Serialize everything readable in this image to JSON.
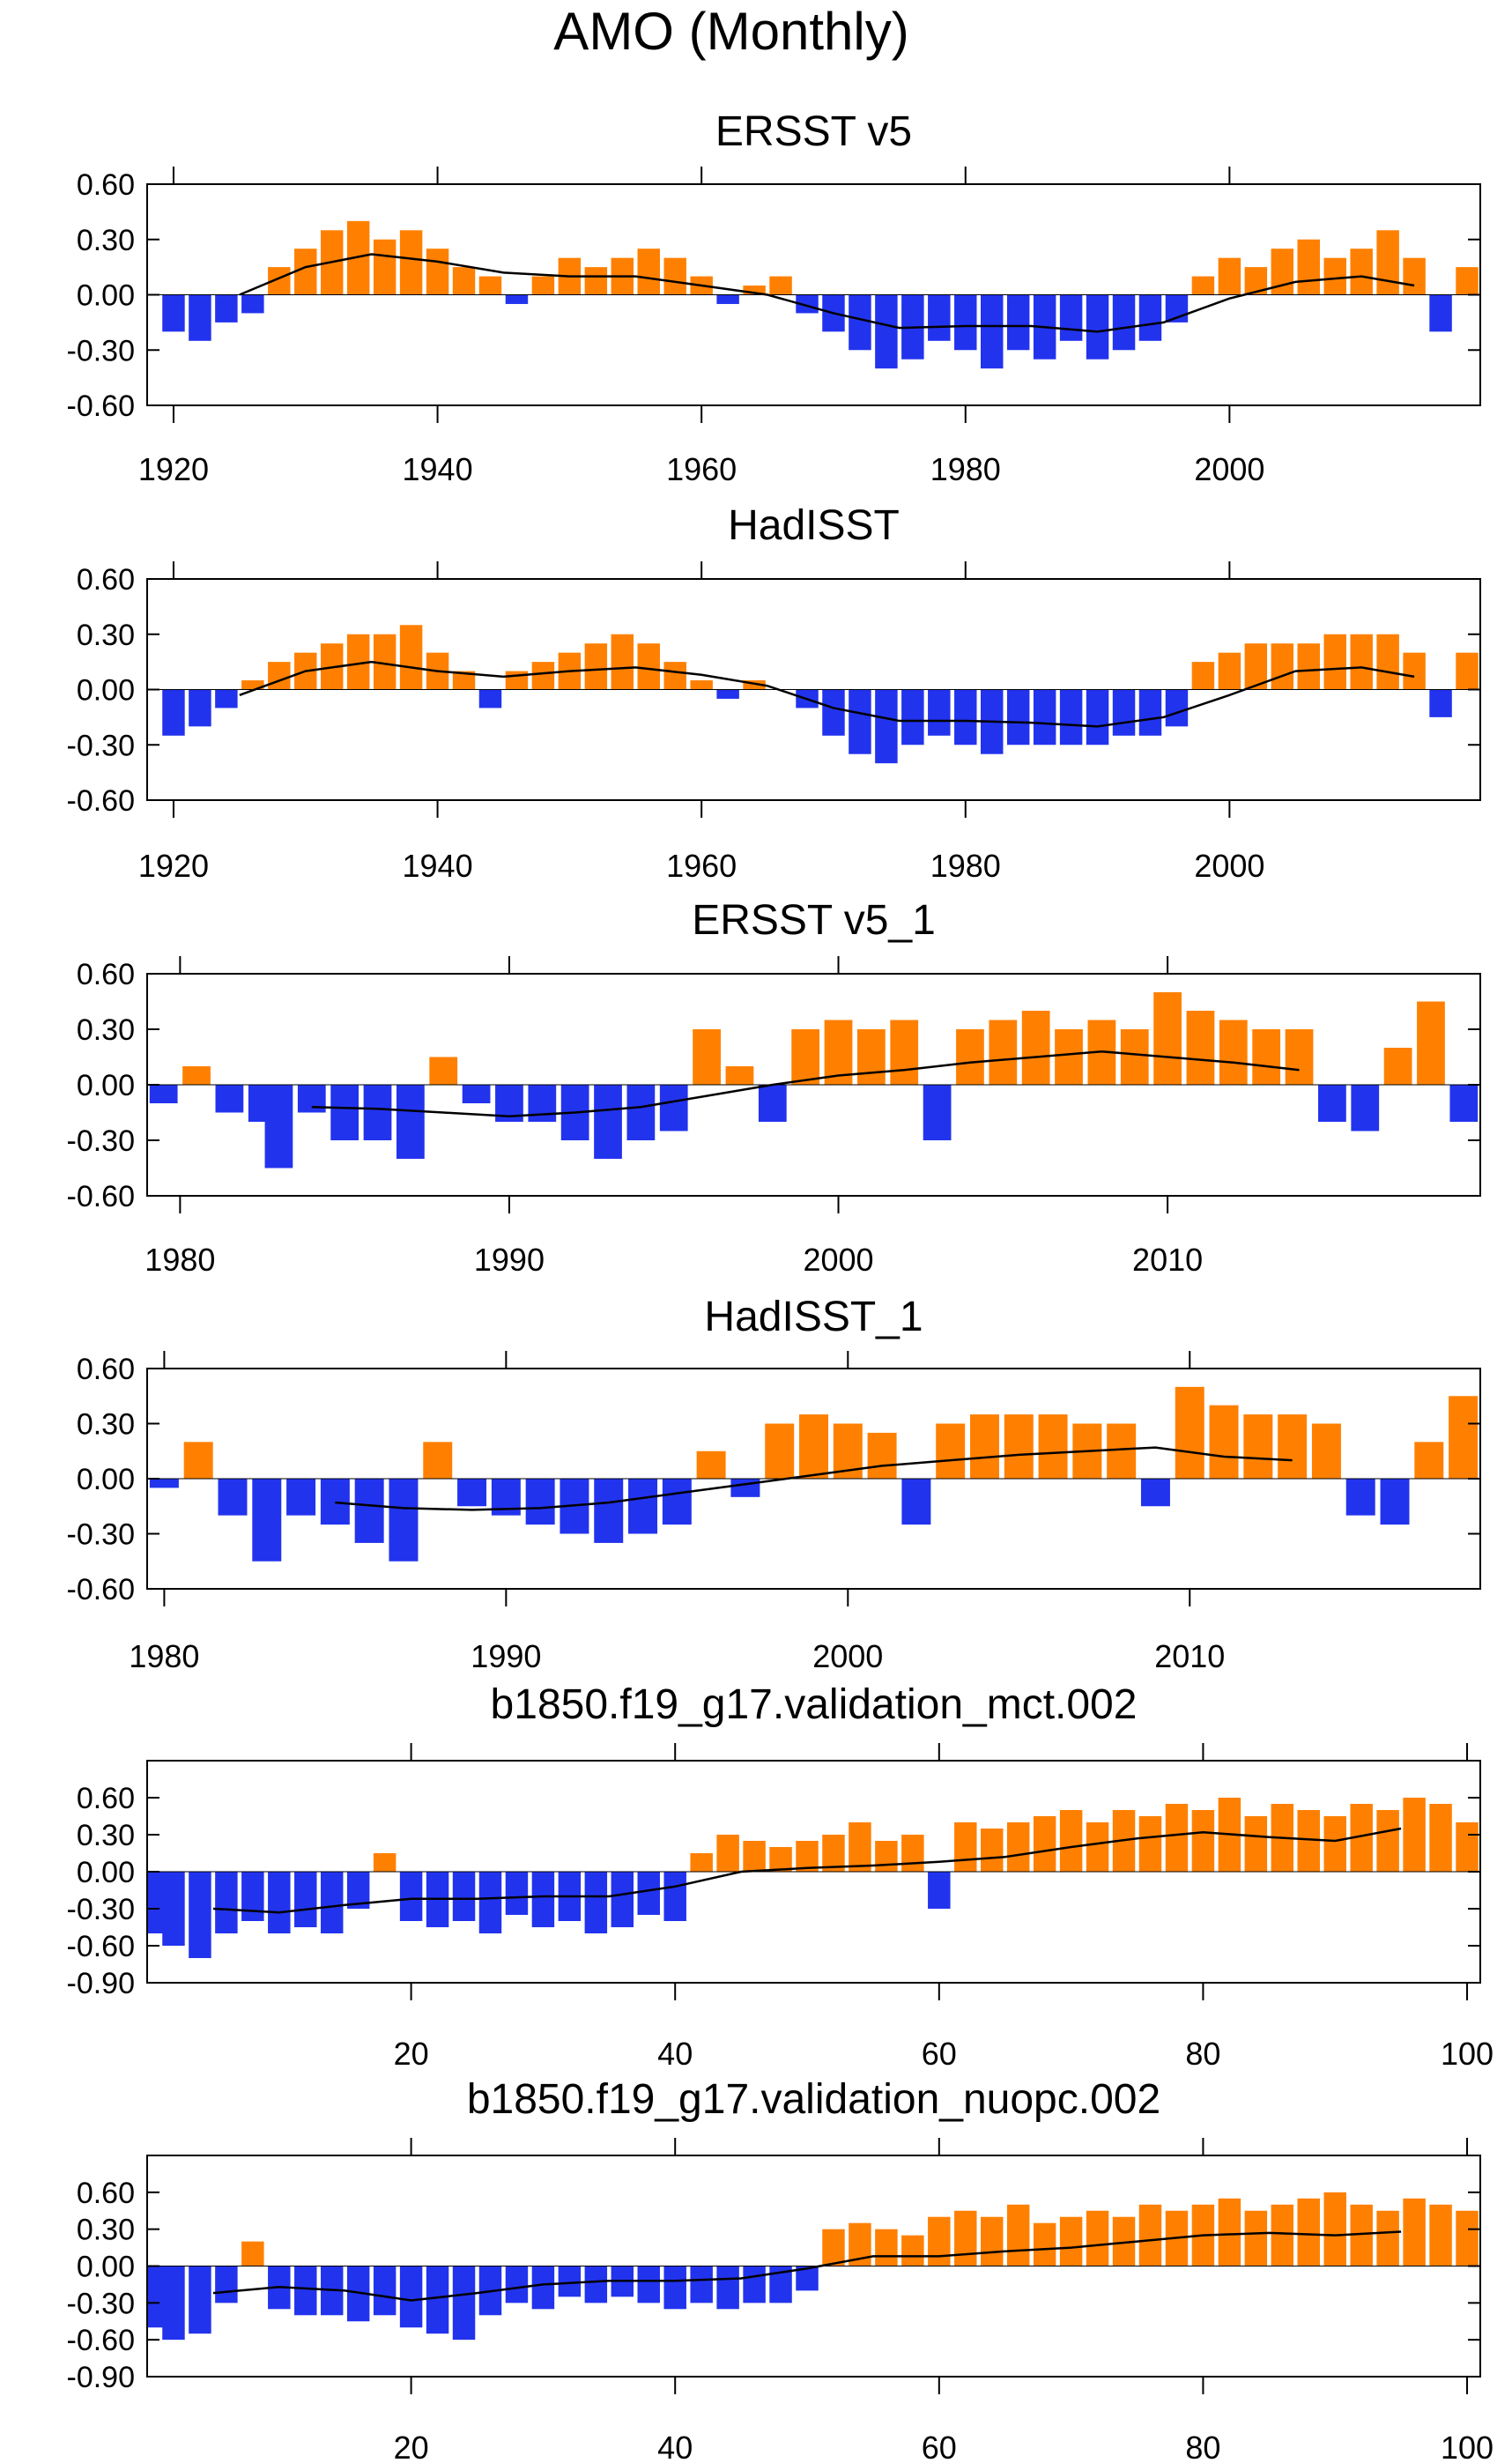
{
  "title": "AMO (Monthly)",
  "colors": {
    "positive": "#ff8000",
    "negative": "#2233ee",
    "smooth": "#000000",
    "axis": "#000000"
  },
  "chart_data": [
    {
      "type": "area",
      "title": "ERSST v5",
      "xlabel": "",
      "ylabel": "",
      "xlim": [
        1918,
        2019
      ],
      "ylim": [
        -0.6,
        0.6
      ],
      "yticks": [
        "0.60",
        "0.30",
        "0.00",
        "-0.30",
        "-0.60"
      ],
      "xticks": [
        "1920",
        "1940",
        "1960",
        "1980",
        "2000"
      ],
      "x": [
        1920,
        1922,
        1924,
        1926,
        1928,
        1930,
        1932,
        1934,
        1936,
        1938,
        1940,
        1942,
        1944,
        1946,
        1948,
        1950,
        1952,
        1954,
        1956,
        1958,
        1960,
        1962,
        1964,
        1966,
        1968,
        1970,
        1972,
        1974,
        1976,
        1978,
        1980,
        1982,
        1984,
        1986,
        1988,
        1990,
        1992,
        1994,
        1996,
        1998,
        2000,
        2002,
        2004,
        2006,
        2008,
        2010,
        2012,
        2014,
        2016,
        2018
      ],
      "values": [
        -0.2,
        -0.25,
        -0.15,
        -0.1,
        0.15,
        0.25,
        0.35,
        0.4,
        0.3,
        0.35,
        0.25,
        0.15,
        0.1,
        -0.05,
        0.1,
        0.2,
        0.15,
        0.2,
        0.25,
        0.2,
        0.1,
        -0.05,
        0.05,
        0.1,
        -0.1,
        -0.2,
        -0.3,
        -0.4,
        -0.35,
        -0.25,
        -0.3,
        -0.4,
        -0.3,
        -0.35,
        -0.25,
        -0.35,
        -0.3,
        -0.25,
        -0.15,
        0.1,
        0.2,
        0.15,
        0.25,
        0.3,
        0.2,
        0.25,
        0.35,
        0.2,
        -0.2,
        0.15
      ],
      "smooth_x": [
        1925,
        1930,
        1935,
        1940,
        1945,
        1950,
        1955,
        1960,
        1965,
        1970,
        1975,
        1980,
        1985,
        1990,
        1995,
        2000,
        2005,
        2010,
        2014
      ],
      "smooth": [
        0.0,
        0.15,
        0.22,
        0.18,
        0.12,
        0.1,
        0.1,
        0.05,
        0.0,
        -0.1,
        -0.18,
        -0.17,
        -0.17,
        -0.2,
        -0.15,
        -0.02,
        0.07,
        0.1,
        0.05
      ]
    },
    {
      "type": "area",
      "title": "HadISST",
      "xlabel": "",
      "ylabel": "",
      "xlim": [
        1918,
        2019
      ],
      "ylim": [
        -0.6,
        0.6
      ],
      "yticks": [
        "0.60",
        "0.30",
        "0.00",
        "-0.30",
        "-0.60"
      ],
      "xticks": [
        "1920",
        "1940",
        "1960",
        "1980",
        "2000"
      ],
      "x": [
        1920,
        1922,
        1924,
        1926,
        1928,
        1930,
        1932,
        1934,
        1936,
        1938,
        1940,
        1942,
        1944,
        1946,
        1948,
        1950,
        1952,
        1954,
        1956,
        1958,
        1960,
        1962,
        1964,
        1966,
        1968,
        1970,
        1972,
        1974,
        1976,
        1978,
        1980,
        1982,
        1984,
        1986,
        1988,
        1990,
        1992,
        1994,
        1996,
        1998,
        2000,
        2002,
        2004,
        2006,
        2008,
        2010,
        2012,
        2014,
        2016,
        2018
      ],
      "values": [
        -0.25,
        -0.2,
        -0.1,
        0.05,
        0.15,
        0.2,
        0.25,
        0.3,
        0.3,
        0.35,
        0.2,
        0.1,
        -0.1,
        0.1,
        0.15,
        0.2,
        0.25,
        0.3,
        0.25,
        0.15,
        0.05,
        -0.05,
        0.05,
        0.0,
        -0.1,
        -0.25,
        -0.35,
        -0.4,
        -0.3,
        -0.25,
        -0.3,
        -0.35,
        -0.3,
        -0.3,
        -0.3,
        -0.3,
        -0.25,
        -0.25,
        -0.2,
        0.15,
        0.2,
        0.25,
        0.25,
        0.25,
        0.3,
        0.3,
        0.3,
        0.2,
        -0.15,
        0.2
      ],
      "smooth_x": [
        1925,
        1930,
        1935,
        1940,
        1945,
        1950,
        1955,
        1960,
        1965,
        1970,
        1975,
        1980,
        1985,
        1990,
        1995,
        2000,
        2005,
        2010,
        2014
      ],
      "smooth": [
        -0.03,
        0.1,
        0.15,
        0.1,
        0.07,
        0.1,
        0.12,
        0.08,
        0.02,
        -0.1,
        -0.17,
        -0.17,
        -0.18,
        -0.2,
        -0.15,
        -0.03,
        0.1,
        0.12,
        0.07
      ]
    },
    {
      "type": "area",
      "title": "ERSST v5_1",
      "xlabel": "",
      "ylabel": "",
      "xlim": [
        1979,
        2019.5
      ],
      "ylim": [
        -0.6,
        0.6
      ],
      "yticks": [
        "0.60",
        "0.30",
        "0.00",
        "-0.30",
        "-0.60"
      ],
      "xticks": [
        "1980",
        "1990",
        "2000",
        "2010"
      ],
      "x": [
        1979.5,
        1980.5,
        1981.5,
        1982.5,
        1983,
        1984,
        1985,
        1986,
        1987,
        1988,
        1989,
        1990,
        1991,
        1992,
        1993,
        1994,
        1995,
        1996,
        1997,
        1998,
        1999,
        2000,
        2001,
        2002,
        2003,
        2004,
        2005,
        2006,
        2007,
        2008,
        2009,
        2010,
        2011,
        2012,
        2013,
        2014,
        2015,
        2016,
        2017,
        2018,
        2019
      ],
      "values": [
        -0.1,
        0.1,
        -0.15,
        -0.2,
        -0.45,
        -0.15,
        -0.3,
        -0.3,
        -0.4,
        0.15,
        -0.1,
        -0.2,
        -0.2,
        -0.3,
        -0.4,
        -0.3,
        -0.25,
        0.3,
        0.1,
        -0.2,
        0.3,
        0.35,
        0.3,
        0.35,
        -0.3,
        0.3,
        0.35,
        0.4,
        0.3,
        0.35,
        0.3,
        0.5,
        0.4,
        0.35,
        0.3,
        0.3,
        -0.2,
        -0.25,
        0.2,
        0.45,
        -0.2
      ],
      "smooth_x": [
        1984,
        1986,
        1988,
        1990,
        1992,
        1994,
        1996,
        1998,
        2000,
        2002,
        2004,
        2006,
        2008,
        2010,
        2012,
        2014
      ],
      "smooth": [
        -0.12,
        -0.13,
        -0.15,
        -0.17,
        -0.15,
        -0.12,
        -0.06,
        0.0,
        0.05,
        0.08,
        0.12,
        0.15,
        0.18,
        0.15,
        0.12,
        0.08
      ]
    },
    {
      "type": "area",
      "title": "HadISST_1",
      "xlabel": "",
      "ylabel": "",
      "xlim": [
        1979.5,
        2018.5
      ],
      "ylim": [
        -0.6,
        0.6
      ],
      "yticks": [
        "0.60",
        "0.30",
        "0.00",
        "-0.30",
        "-0.60"
      ],
      "xticks": [
        "1980",
        "1990",
        "2000",
        "2010"
      ],
      "x": [
        1980,
        1981,
        1982,
        1983,
        1984,
        1985,
        1986,
        1987,
        1988,
        1989,
        1990,
        1991,
        1992,
        1993,
        1994,
        1995,
        1996,
        1997,
        1998,
        1999,
        2000,
        2001,
        2002,
        2003,
        2004,
        2005,
        2006,
        2007,
        2008,
        2009,
        2010,
        2011,
        2012,
        2013,
        2014,
        2015,
        2016,
        2017,
        2018
      ],
      "values": [
        -0.05,
        0.2,
        -0.2,
        -0.45,
        -0.2,
        -0.25,
        -0.35,
        -0.45,
        0.2,
        -0.15,
        -0.2,
        -0.25,
        -0.3,
        -0.35,
        -0.3,
        -0.25,
        0.15,
        -0.1,
        0.3,
        0.35,
        0.3,
        0.25,
        -0.25,
        0.3,
        0.35,
        0.35,
        0.35,
        0.3,
        0.3,
        -0.15,
        0.5,
        0.4,
        0.35,
        0.35,
        0.3,
        -0.2,
        -0.25,
        0.2,
        0.45
      ],
      "smooth_x": [
        1985,
        1987,
        1989,
        1991,
        1993,
        1995,
        1997,
        1999,
        2001,
        2003,
        2005,
        2007,
        2009,
        2011,
        2013
      ],
      "smooth": [
        -0.13,
        -0.16,
        -0.17,
        -0.16,
        -0.13,
        -0.08,
        -0.03,
        0.02,
        0.07,
        0.1,
        0.13,
        0.15,
        0.17,
        0.12,
        0.1
      ]
    },
    {
      "type": "area",
      "title": "b1850.f19_g17.validation_mct.002",
      "xlabel": "",
      "ylabel": "",
      "xlim": [
        0,
        101
      ],
      "ylim": [
        -0.9,
        0.9
      ],
      "yticks": [
        "0.60",
        "0.30",
        "0.00",
        "-0.30",
        "-0.60",
        "-0.90"
      ],
      "xticks": [
        "20",
        "40",
        "60",
        "80",
        "100"
      ],
      "x": [
        0,
        2,
        4,
        6,
        8,
        10,
        12,
        14,
        16,
        18,
        20,
        22,
        24,
        26,
        28,
        30,
        32,
        34,
        36,
        38,
        40,
        42,
        44,
        46,
        48,
        50,
        52,
        54,
        56,
        58,
        60,
        62,
        64,
        66,
        68,
        70,
        72,
        74,
        76,
        78,
        80,
        82,
        84,
        86,
        88,
        90,
        92,
        94,
        96,
        98,
        100
      ],
      "values": [
        -0.5,
        -0.6,
        -0.7,
        -0.5,
        -0.4,
        -0.5,
        -0.45,
        -0.5,
        -0.3,
        0.15,
        -0.4,
        -0.45,
        -0.4,
        -0.5,
        -0.35,
        -0.45,
        -0.4,
        -0.5,
        -0.45,
        -0.35,
        -0.4,
        0.15,
        0.3,
        0.25,
        0.2,
        0.25,
        0.3,
        0.4,
        0.25,
        0.3,
        -0.3,
        0.4,
        0.35,
        0.4,
        0.45,
        0.5,
        0.4,
        0.5,
        0.45,
        0.55,
        0.5,
        0.6,
        0.45,
        0.55,
        0.5,
        0.45,
        0.55,
        0.5,
        0.6,
        0.55,
        0.4
      ],
      "smooth_x": [
        5,
        10,
        15,
        20,
        25,
        30,
        35,
        40,
        45,
        50,
        55,
        60,
        65,
        70,
        75,
        80,
        85,
        90,
        95
      ],
      "smooth": [
        -0.3,
        -0.33,
        -0.27,
        -0.22,
        -0.22,
        -0.2,
        -0.2,
        -0.12,
        0.0,
        0.03,
        0.05,
        0.08,
        0.12,
        0.2,
        0.27,
        0.32,
        0.28,
        0.25,
        0.35
      ]
    },
    {
      "type": "area",
      "title": "b1850.f19_g17.validation_nuopc.002",
      "xlabel": "",
      "ylabel": "",
      "xlim": [
        0,
        101
      ],
      "ylim": [
        -0.9,
        0.9
      ],
      "yticks": [
        "0.60",
        "0.30",
        "0.00",
        "-0.30",
        "-0.60",
        "-0.90"
      ],
      "xticks": [
        "20",
        "40",
        "60",
        "80",
        "100"
      ],
      "x": [
        0,
        2,
        4,
        6,
        8,
        10,
        12,
        14,
        16,
        18,
        20,
        22,
        24,
        26,
        28,
        30,
        32,
        34,
        36,
        38,
        40,
        42,
        44,
        46,
        48,
        50,
        52,
        54,
        56,
        58,
        60,
        62,
        64,
        66,
        68,
        70,
        72,
        74,
        76,
        78,
        80,
        82,
        84,
        86,
        88,
        90,
        92,
        94,
        96,
        98,
        100
      ],
      "values": [
        -0.5,
        -0.6,
        -0.55,
        -0.3,
        0.2,
        -0.35,
        -0.4,
        -0.4,
        -0.45,
        -0.4,
        -0.5,
        -0.55,
        -0.6,
        -0.4,
        -0.3,
        -0.35,
        -0.25,
        -0.3,
        -0.25,
        -0.3,
        -0.35,
        -0.3,
        -0.35,
        -0.3,
        -0.3,
        -0.2,
        0.3,
        0.35,
        0.3,
        0.25,
        0.4,
        0.45,
        0.4,
        0.5,
        0.35,
        0.4,
        0.45,
        0.4,
        0.5,
        0.45,
        0.5,
        0.55,
        0.45,
        0.5,
        0.55,
        0.6,
        0.5,
        0.45,
        0.55,
        0.5,
        0.45
      ],
      "smooth_x": [
        5,
        10,
        15,
        20,
        25,
        30,
        35,
        40,
        45,
        50,
        55,
        60,
        65,
        70,
        75,
        80,
        85,
        90,
        95
      ],
      "smooth": [
        -0.22,
        -0.17,
        -0.2,
        -0.28,
        -0.22,
        -0.15,
        -0.12,
        -0.12,
        -0.1,
        -0.02,
        0.08,
        0.08,
        0.12,
        0.15,
        0.2,
        0.25,
        0.27,
        0.25,
        0.28
      ]
    }
  ]
}
